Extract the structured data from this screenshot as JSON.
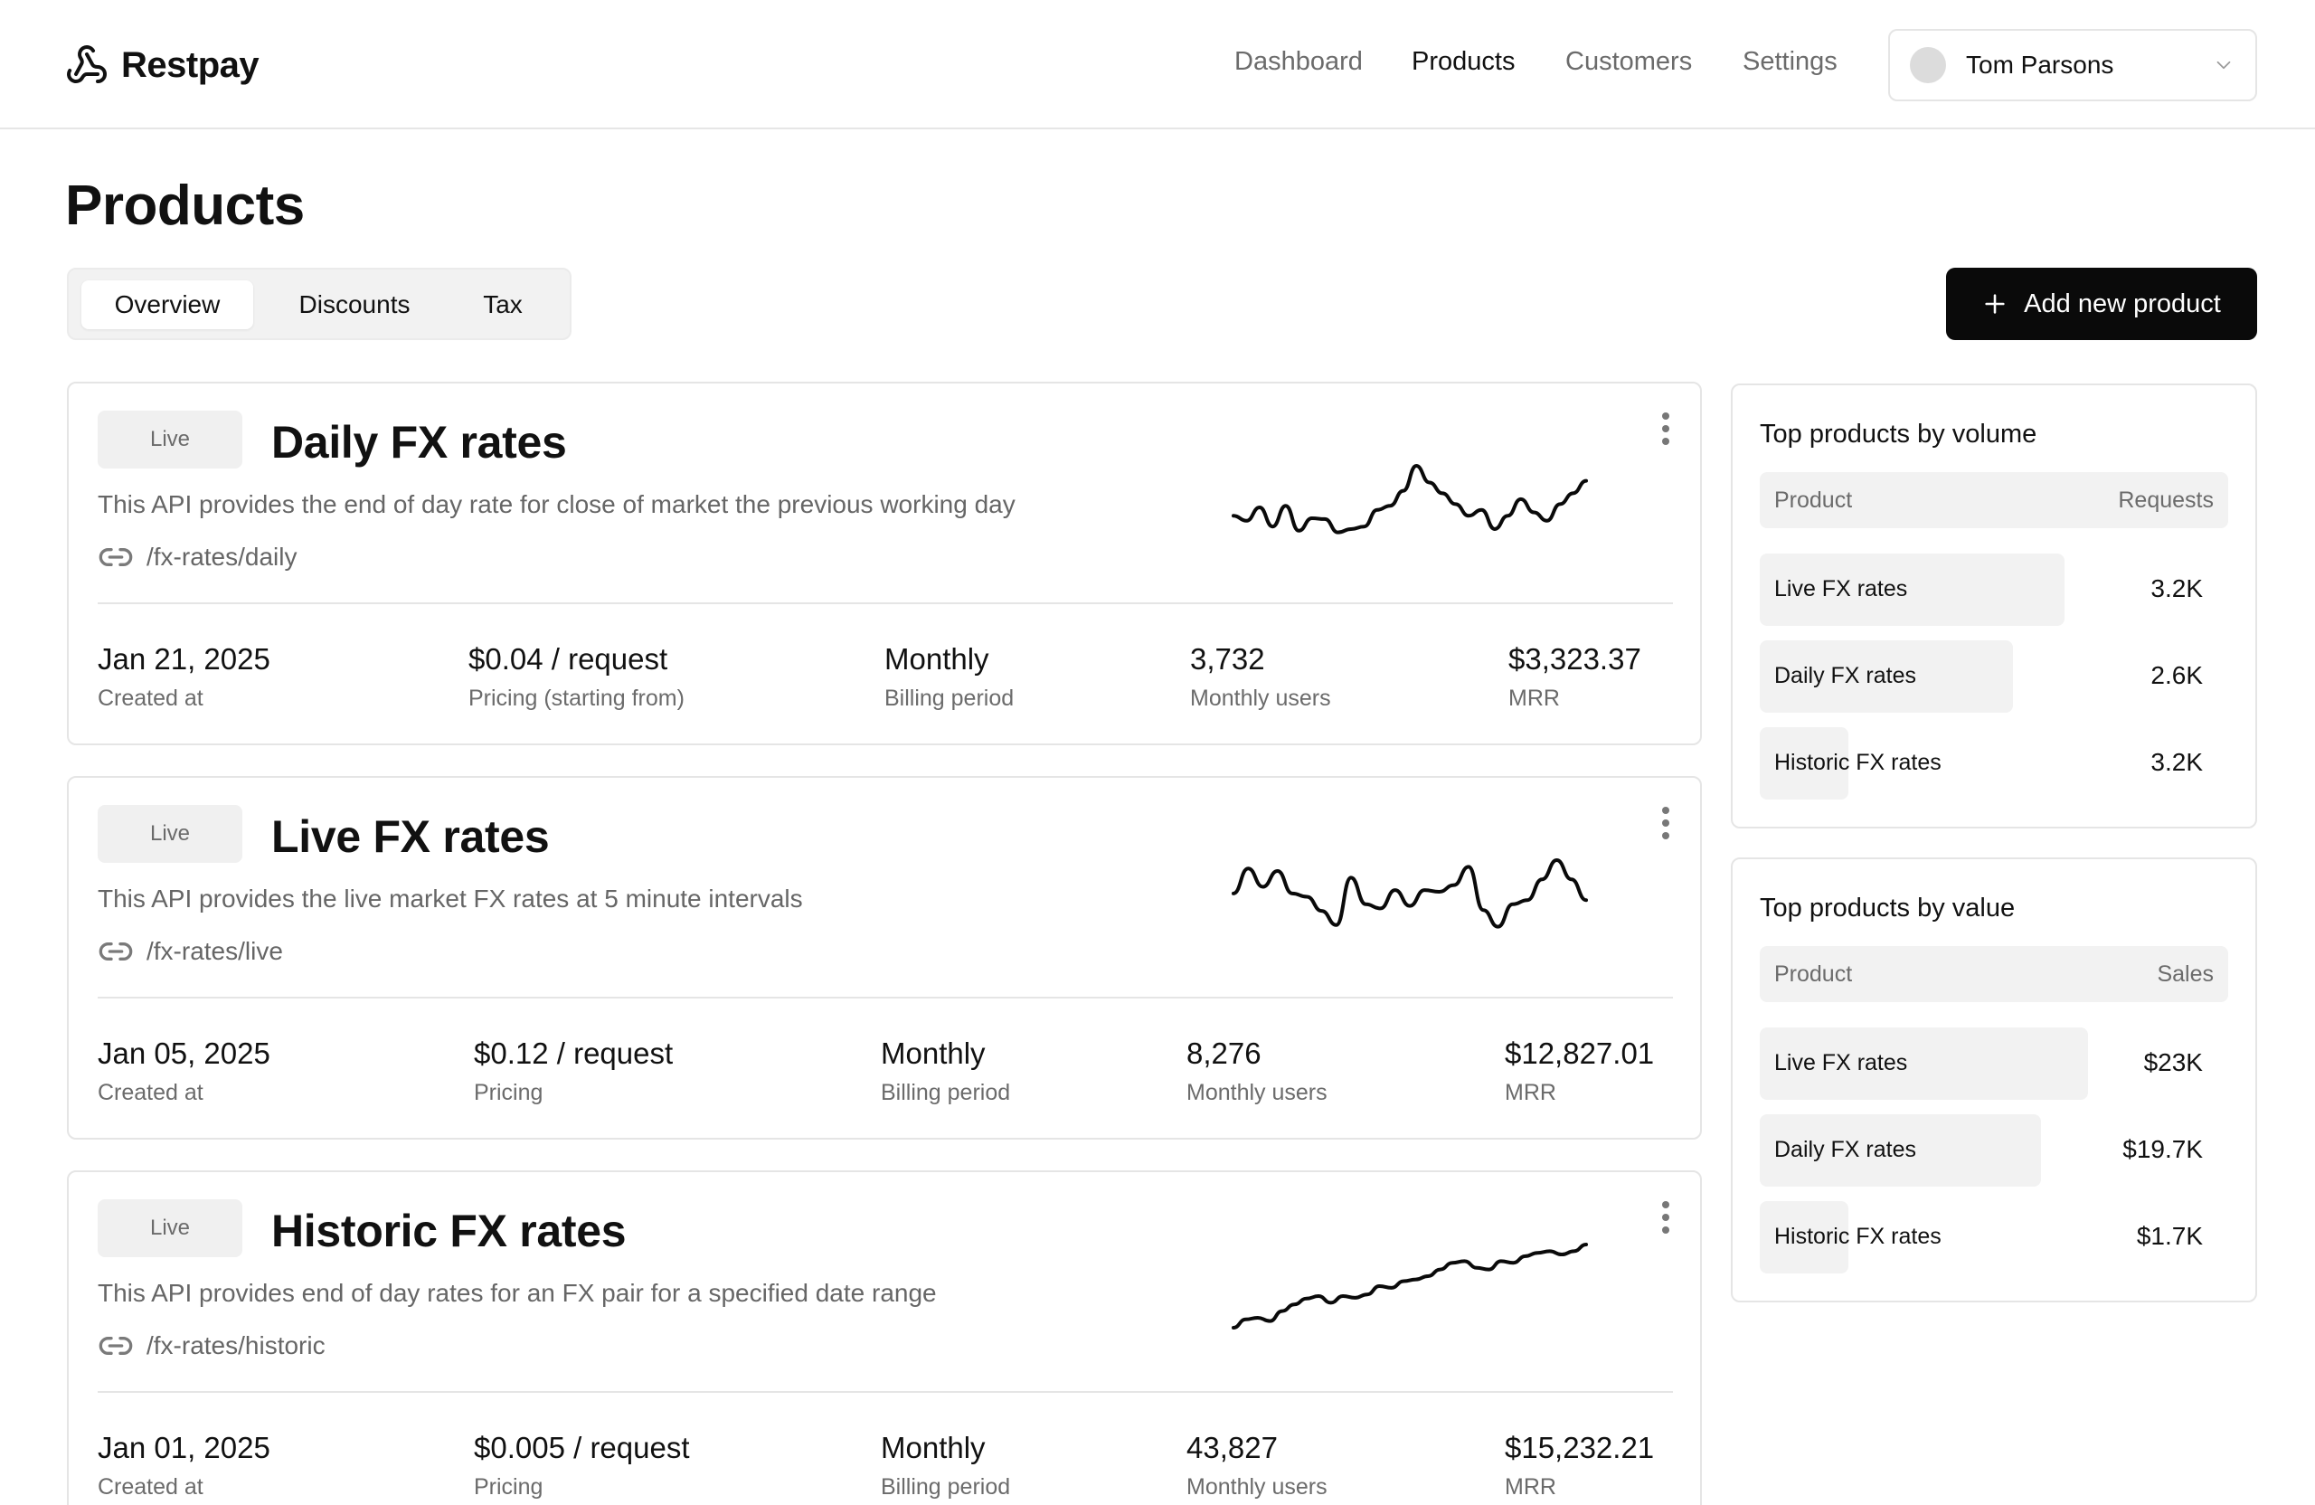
{
  "brand": {
    "name": "Restpay"
  },
  "nav": {
    "items": [
      {
        "label": "Dashboard",
        "active": false
      },
      {
        "label": "Products",
        "active": true
      },
      {
        "label": "Customers",
        "active": false
      },
      {
        "label": "Settings",
        "active": false
      }
    ]
  },
  "user": {
    "name": "Tom Parsons"
  },
  "page": {
    "title": "Products"
  },
  "tabs": [
    {
      "label": "Overview",
      "active": true
    },
    {
      "label": "Discounts",
      "active": false
    },
    {
      "label": "Tax",
      "active": false
    }
  ],
  "actions": {
    "add_label": "Add new product"
  },
  "products": [
    {
      "status": "Live",
      "title": "Daily FX rates",
      "description": "This API provides the end of day rate for close of market the previous working day",
      "path": "/fx-rates/daily",
      "stats": [
        {
          "value": "Jan 21, 2025",
          "label": "Created at"
        },
        {
          "value": "$0.04 / request",
          "label": "Pricing (starting from)"
        },
        {
          "value": "Monthly",
          "label": "Billing period"
        },
        {
          "value": "3,732",
          "label": "Monthly users"
        },
        {
          "value": "$3,323.37",
          "label": "MRR"
        }
      ],
      "trend": [
        0.28,
        0.22,
        0.38,
        0.15,
        0.4,
        0.1,
        0.25,
        0.24,
        0.08,
        0.12,
        0.15,
        0.35,
        0.4,
        0.58,
        0.88,
        0.68,
        0.55,
        0.42,
        0.28,
        0.35,
        0.12,
        0.28,
        0.48,
        0.32,
        0.22,
        0.42,
        0.55,
        0.7
      ]
    },
    {
      "status": "Live",
      "title": "Live FX rates",
      "description": "This API provides the live market FX rates at 5 minute intervals",
      "path": "/fx-rates/live",
      "stats": [
        {
          "value": "Jan 05, 2025",
          "label": "Created at"
        },
        {
          "value": "$0.12 / request",
          "label": "Pricing"
        },
        {
          "value": "Monthly",
          "label": "Billing period"
        },
        {
          "value": "8,276",
          "label": "Monthly users"
        },
        {
          "value": "$12,827.01",
          "label": "MRR"
        }
      ],
      "trend": [
        0.48,
        0.78,
        0.56,
        0.75,
        0.48,
        0.44,
        0.27,
        0.1,
        0.67,
        0.35,
        0.3,
        0.52,
        0.33,
        0.52,
        0.5,
        0.58,
        0.8,
        0.28,
        0.08,
        0.35,
        0.4,
        0.65,
        0.88,
        0.65,
        0.4
      ]
    },
    {
      "status": "Live",
      "title": "Historic FX rates",
      "description": "This API provides end of day rates for an FX pair for a specified date range",
      "path": "/fx-rates/historic",
      "stats": [
        {
          "value": "Jan 01, 2025",
          "label": "Created at"
        },
        {
          "value": "$0.005 / request",
          "label": "Pricing"
        },
        {
          "value": "Monthly",
          "label": "Billing period"
        },
        {
          "value": "43,827",
          "label": "Monthly users"
        },
        {
          "value": "$15,232.21",
          "label": "MRR"
        }
      ],
      "trend": [
        0.0,
        0.1,
        0.12,
        0.08,
        0.2,
        0.28,
        0.35,
        0.38,
        0.3,
        0.38,
        0.36,
        0.4,
        0.5,
        0.48,
        0.56,
        0.58,
        0.62,
        0.7,
        0.78,
        0.8,
        0.72,
        0.7,
        0.8,
        0.78,
        0.86,
        0.9,
        0.92,
        0.88,
        0.92,
        1.0
      ]
    }
  ],
  "top_by_volume": {
    "title": "Top products by volume",
    "col_product": "Product",
    "col_metric": "Requests",
    "rows": [
      {
        "name": "Live FX rates",
        "value": "3.2K",
        "share": 0.65
      },
      {
        "name": "Daily FX rates",
        "value": "2.6K",
        "share": 0.54
      },
      {
        "name": "Historic FX rates",
        "value": "3.2K",
        "share": 0.19
      }
    ]
  },
  "top_by_value": {
    "title": "Top products by value",
    "col_product": "Product",
    "col_metric": "Sales",
    "rows": [
      {
        "name": "Live FX rates",
        "value": "$23K",
        "share": 0.7
      },
      {
        "name": "Daily FX rates",
        "value": "$19.7K",
        "share": 0.6
      },
      {
        "name": "Historic FX rates",
        "value": "$1.7K",
        "share": 0.19
      }
    ]
  },
  "colors": {
    "accent": "#0a0a0a",
    "muted": "#6b6b6b",
    "surface": "#f2f2f2",
    "border": "#e5e5e5"
  }
}
